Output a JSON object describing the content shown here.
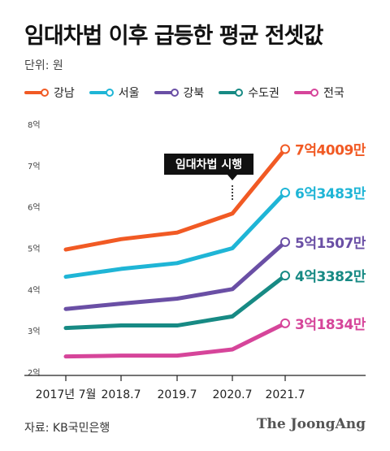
{
  "title": "임대차법 이후 급등한 평균 전셋값",
  "unit_label": "단위: 원",
  "source": "자료: KB국민은행",
  "brand": "The JoongAng",
  "annotation": "임대차법 시행",
  "chart_data": {
    "type": "line",
    "categories": [
      "2017년 7월",
      "2018.7",
      "2019.7",
      "2020.7",
      "2021.7"
    ],
    "y_ticks": [
      "2억",
      "3억",
      "4억",
      "5억",
      "6억",
      "7억",
      "8억"
    ],
    "ylim": [
      2,
      8
    ],
    "grid": false,
    "legend_placement": "top",
    "annotation": {
      "text": "임대차법 시행",
      "x_index": 3
    },
    "series": [
      {
        "name": "강남",
        "color": "#f15a24",
        "values": [
          4.97,
          5.22,
          5.38,
          5.84,
          7.4009
        ],
        "end_label": "7억4009만"
      },
      {
        "name": "서울",
        "color": "#1fb5d6",
        "values": [
          4.31,
          4.5,
          4.64,
          5.0,
          6.3483
        ],
        "end_label": "6억3483만"
      },
      {
        "name": "강북",
        "color": "#6a4fa5",
        "values": [
          3.53,
          3.66,
          3.78,
          4.01,
          5.1507
        ],
        "end_label": "5억1507만"
      },
      {
        "name": "수도권",
        "color": "#178a84",
        "values": [
          3.07,
          3.13,
          3.13,
          3.35,
          4.3382
        ],
        "end_label": "4억3382만"
      },
      {
        "name": "전국",
        "color": "#d6459a",
        "values": [
          2.38,
          2.4,
          2.4,
          2.55,
          3.1834
        ],
        "end_label": "3억1834만"
      }
    ]
  }
}
